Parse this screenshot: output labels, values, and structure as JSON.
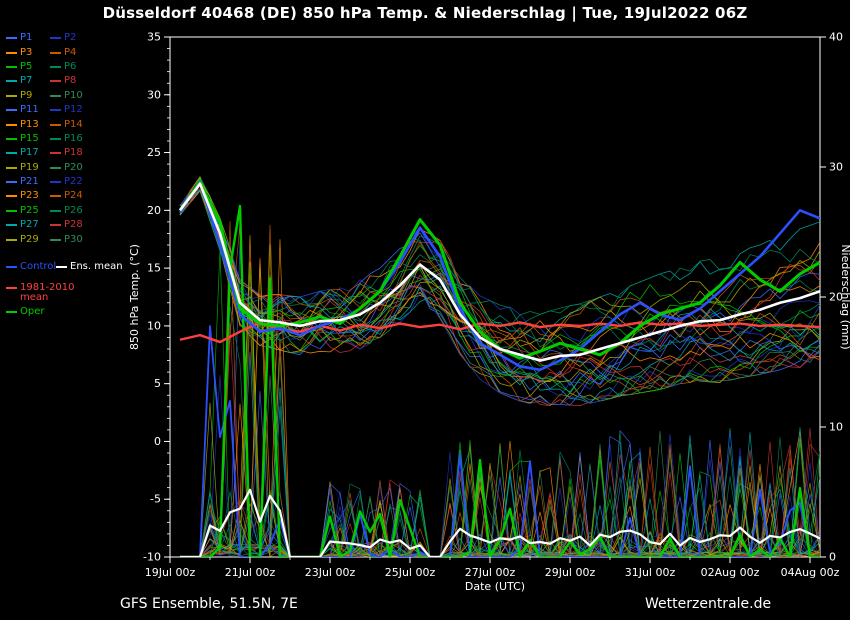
{
  "title": "Düsseldorf 40468 (DE)  850 hPa Temp. & Niederschlag | Tue, 19Jul2022 06Z",
  "footer": {
    "left": "GFS Ensemble, 51.5N, 7E",
    "right": "Wetterzentrale.de"
  },
  "axes": {
    "left_label": "850 hPa Temp. (°C)",
    "right_label": "Niederschlag (mm)",
    "x_label": "Date (UTC)",
    "temp_range": [
      -10,
      35
    ],
    "precip_range": [
      0,
      40
    ],
    "left_ticks": [
      35,
      30,
      25,
      20,
      15,
      10,
      5,
      0,
      -5,
      -10
    ],
    "right_ticks": [
      40,
      30,
      20,
      10,
      0
    ],
    "x_tick_hours": [
      0,
      48,
      96,
      144,
      192,
      240,
      288,
      336,
      384
    ],
    "x_tick_labels": [
      "19Jul 00z",
      "21Jul 00z",
      "23Jul 00z",
      "25Jul 00z",
      "27Jul 00z",
      "29Jul 00z",
      "31Jul 00z",
      "02Aug 00z",
      "04Aug 00z"
    ],
    "minor_x_step_hours": 24,
    "hours_max": 390
  },
  "legend": {
    "members": [
      {
        "label": "P1",
        "color": "#3b6cff"
      },
      {
        "label": "P2",
        "color": "#1f35c8"
      },
      {
        "label": "P3",
        "color": "#ff8c00"
      },
      {
        "label": "P4",
        "color": "#c85a00"
      },
      {
        "label": "P5",
        "color": "#00c000"
      },
      {
        "label": "P6",
        "color": "#008855"
      },
      {
        "label": "P7",
        "color": "#00aaaa"
      },
      {
        "label": "P8",
        "color": "#cc3333"
      },
      {
        "label": "P9",
        "color": "#aaaa00"
      },
      {
        "label": "P10",
        "color": "#2e8b57"
      },
      {
        "label": "P11",
        "color": "#3b6cff"
      },
      {
        "label": "P12",
        "color": "#1f35c8"
      },
      {
        "label": "P13",
        "color": "#ff8c00"
      },
      {
        "label": "P14",
        "color": "#c85a00"
      },
      {
        "label": "P15",
        "color": "#00c000"
      },
      {
        "label": "P16",
        "color": "#008855"
      },
      {
        "label": "P17",
        "color": "#00aaaa"
      },
      {
        "label": "P18",
        "color": "#cc3333"
      },
      {
        "label": "P19",
        "color": "#aaaa00"
      },
      {
        "label": "P20",
        "color": "#2e8b57"
      },
      {
        "label": "P21",
        "color": "#3b6cff"
      },
      {
        "label": "P22",
        "color": "#1f35c8"
      },
      {
        "label": "P23",
        "color": "#ff8c00"
      },
      {
        "label": "P24",
        "color": "#c85a00"
      },
      {
        "label": "P25",
        "color": "#00c000"
      },
      {
        "label": "P26",
        "color": "#008855"
      },
      {
        "label": "P27",
        "color": "#00aaaa"
      },
      {
        "label": "P28",
        "color": "#cc3333"
      },
      {
        "label": "P29",
        "color": "#aaaa00"
      },
      {
        "label": "P30",
        "color": "#2e8b57"
      }
    ],
    "control": {
      "label": "Control",
      "color": "#2b50ff"
    },
    "ens_mean": {
      "label": "Ens. mean",
      "color": "#ffffff"
    },
    "climate": {
      "label_line1": "1981-2010",
      "label_line2": "mean",
      "color": "#ff4040"
    },
    "oper": {
      "label": "Oper",
      "color": "#00cc00"
    }
  },
  "chart_data": {
    "type": "line",
    "title": "Düsseldorf 40468 (DE)  850 hPa Temp. & Niederschlag | Tue, 19Jul2022 06Z",
    "xlabel": "Date (UTC)",
    "ylabel_left": "850 hPa Temp. (°C)",
    "ylabel_right": "Niederschlag (mm)",
    "ylim_left": [
      -10,
      35
    ],
    "ylim_right": [
      0,
      40
    ],
    "x_hours": [
      6,
      18,
      30,
      42,
      54,
      66,
      78,
      90,
      102,
      114,
      126,
      138,
      150,
      162,
      174,
      186,
      198,
      210,
      222,
      234,
      246,
      258,
      270,
      282,
      294,
      306,
      318,
      330,
      342,
      354,
      366,
      378,
      390
    ],
    "series": [
      {
        "name": "1981-2010 mean",
        "color": "#ff4040",
        "width": 2.4,
        "values": [
          8.8,
          9.2,
          8.6,
          9.5,
          10.3,
          9.7,
          9.5,
          10,
          9.6,
          10.1,
          9.8,
          10.2,
          9.9,
          10.1,
          9.7,
          10.2,
          10,
          10.3,
          9.9,
          10.1,
          10,
          10.2,
          10,
          10.3,
          10.1,
          10.2,
          10,
          10.1,
          10.2,
          10,
          10.1,
          10,
          9.9
        ]
      },
      {
        "name": "Control",
        "color": "#2b50ff",
        "width": 2.6,
        "values": [
          19.8,
          22.5,
          17,
          11,
          9.5,
          9.8,
          9.2,
          10,
          10.5,
          11.5,
          13,
          15.5,
          18.5,
          16,
          11.5,
          8.5,
          7.5,
          6.5,
          6.2,
          7,
          8,
          9.5,
          11,
          12,
          11,
          10.5,
          11.5,
          13,
          14.5,
          16,
          18,
          20,
          19.3
        ]
      },
      {
        "name": "Oper",
        "color": "#00cc00",
        "width": 3,
        "values": [
          20,
          22.4,
          19,
          11.5,
          10.2,
          10,
          10.3,
          10.8,
          10.2,
          11.5,
          13,
          16,
          19.2,
          17,
          12,
          9.5,
          8,
          7.2,
          7.8,
          8.5,
          8,
          7.5,
          8.5,
          10,
          11,
          11.5,
          12,
          13.5,
          15.5,
          14,
          13,
          14.5,
          15.5
        ]
      },
      {
        "name": "Ens. mean",
        "color": "#ffffff",
        "width": 2.6,
        "values": [
          20,
          22.3,
          18,
          12,
          10.5,
          10.3,
          10,
          10.4,
          10.5,
          11,
          12,
          13.5,
          15.3,
          14,
          11,
          9,
          8,
          7.5,
          7,
          7.4,
          7.5,
          8,
          8.5,
          9,
          9.5,
          10,
          10.4,
          10.5,
          11,
          11.4,
          12,
          12.4,
          13
        ]
      }
    ],
    "ensemble": {
      "count": 30,
      "seed": 20220719,
      "spread": [
        0.4,
        0.6,
        1.5,
        2,
        2.2,
        2.4,
        2.5,
        2.6,
        2.8,
        3,
        3,
        3.2,
        3.2,
        3.4,
        3.5,
        3.6,
        3.8,
        4,
        4,
        4.2,
        4.4,
        4.5,
        4.6,
        4.8,
        5,
        5,
        5.2,
        5.4,
        5.5,
        5.6,
        5.8,
        6,
        6
      ]
    },
    "precip_events": [
      {
        "start": 24,
        "end": 66,
        "peak": 26
      },
      {
        "start": 96,
        "end": 150,
        "peak": 6
      },
      {
        "start": 168,
        "end": 246,
        "peak": 9
      },
      {
        "start": 252,
        "end": 390,
        "peak": 10
      }
    ]
  }
}
